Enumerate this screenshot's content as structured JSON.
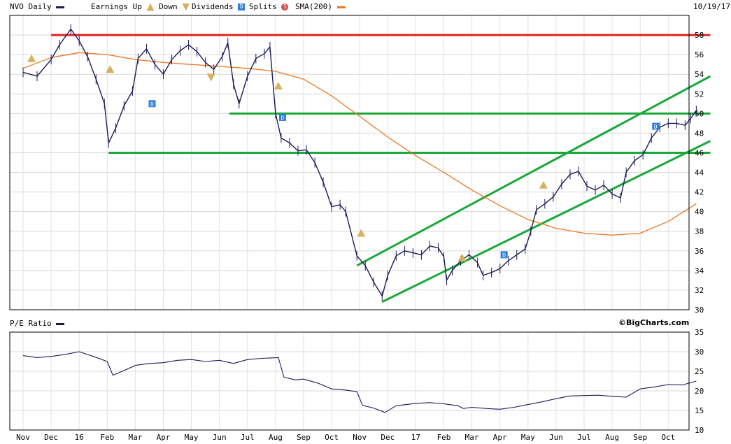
{
  "header": {
    "symbol_label": "NVO Daily",
    "earnings_up_label": "Earnings Up",
    "down_label": "Down",
    "dividends_label": "Dividends",
    "splits_label": "Splits",
    "sma_label": "SMA(200)",
    "date_label": "10/19/17",
    "pe_label": "P/E Ratio",
    "brand": "©BigCharts.com"
  },
  "colors": {
    "price": "#1b1b5a",
    "sma": "#ee7722",
    "resistance": "#e32020",
    "trend": "#1aa83a",
    "earnings_marker": "#d8b060",
    "dividend_marker": "#2f7fe0",
    "split_marker": "#d04848"
  },
  "chart_data": [
    {
      "type": "line",
      "name": "NVO Daily",
      "x": [
        "Nov",
        "Dec",
        "16",
        "Feb",
        "Mar",
        "Apr",
        "May",
        "Jun",
        "Jul",
        "Aug",
        "Sep",
        "Oct",
        "Nov",
        "Dec",
        "17",
        "Feb",
        "Mar",
        "Apr",
        "May",
        "Jun",
        "Jul",
        "Aug",
        "Sep",
        "Oct"
      ],
      "ylim": [
        30,
        60
      ],
      "yticks": [
        30,
        32,
        34,
        36,
        38,
        40,
        42,
        44,
        46,
        48,
        50,
        52,
        54,
        56,
        58
      ],
      "series": [
        {
          "name": "NVO Daily",
          "points": [
            [
              0,
              54.2
            ],
            [
              0.5,
              53.8
            ],
            [
              1,
              55.5
            ],
            [
              1.3,
              57.0
            ],
            [
              1.7,
              58.6
            ],
            [
              2,
              57.4
            ],
            [
              2.3,
              55.8
            ],
            [
              2.6,
              53.5
            ],
            [
              2.9,
              51.0
            ],
            [
              3.05,
              47.0
            ],
            [
              3.3,
              48.5
            ],
            [
              3.6,
              50.8
            ],
            [
              3.9,
              52.3
            ],
            [
              4.1,
              55.6
            ],
            [
              4.4,
              56.6
            ],
            [
              4.7,
              55.0
            ],
            [
              5,
              54.0
            ],
            [
              5.3,
              55.5
            ],
            [
              5.6,
              56.4
            ],
            [
              5.9,
              57.0
            ],
            [
              6.2,
              56.3
            ],
            [
              6.5,
              55.2
            ],
            [
              6.8,
              54.5
            ],
            [
              7.1,
              55.8
            ],
            [
              7.3,
              57.2
            ],
            [
              7.5,
              53.0
            ],
            [
              7.7,
              51.0
            ],
            [
              8,
              53.8
            ],
            [
              8.3,
              55.6
            ],
            [
              8.6,
              56.1
            ],
            [
              8.8,
              56.8
            ],
            [
              9.0,
              50.0
            ],
            [
              9.2,
              47.5
            ],
            [
              9.5,
              47.0
            ],
            [
              9.8,
              46.2
            ],
            [
              10.1,
              46.3
            ],
            [
              10.4,
              45.0
            ],
            [
              10.7,
              43.0
            ],
            [
              11,
              40.5
            ],
            [
              11.3,
              40.7
            ],
            [
              11.5,
              40.0
            ],
            [
              11.9,
              35.5
            ],
            [
              12.2,
              34.5
            ],
            [
              12.5,
              32.8
            ],
            [
              12.8,
              31.4
            ],
            [
              13,
              33.5
            ],
            [
              13.3,
              35.5
            ],
            [
              13.6,
              36.0
            ],
            [
              13.9,
              35.8
            ],
            [
              14.2,
              35.6
            ],
            [
              14.5,
              36.5
            ],
            [
              14.8,
              36.3
            ],
            [
              15,
              35.4
            ],
            [
              15.1,
              33.0
            ],
            [
              15.3,
              34.0
            ],
            [
              15.6,
              35.0
            ],
            [
              15.9,
              35.6
            ],
            [
              16.2,
              34.8
            ],
            [
              16.4,
              33.5
            ],
            [
              16.7,
              33.8
            ],
            [
              17,
              34.2
            ],
            [
              17.3,
              35.0
            ],
            [
              17.6,
              35.6
            ],
            [
              17.9,
              36.2
            ],
            [
              18.1,
              38.0
            ],
            [
              18.3,
              40.2
            ],
            [
              18.6,
              40.8
            ],
            [
              18.9,
              41.5
            ],
            [
              19.2,
              42.8
            ],
            [
              19.5,
              43.8
            ],
            [
              19.8,
              44.1
            ],
            [
              20.1,
              42.6
            ],
            [
              20.4,
              42.2
            ],
            [
              20.7,
              42.7
            ],
            [
              21,
              41.8
            ],
            [
              21.3,
              41.4
            ],
            [
              21.5,
              44.0
            ],
            [
              21.8,
              45.2
            ],
            [
              22.1,
              45.8
            ],
            [
              22.4,
              47.5
            ],
            [
              22.7,
              48.6
            ],
            [
              23,
              49.0
            ],
            [
              23.3,
              49.0
            ],
            [
              23.6,
              48.8
            ],
            [
              23.8,
              49.5
            ],
            [
              24,
              50.3
            ]
          ]
        },
        {
          "name": "SMA(200)",
          "points": [
            [
              0,
              54.6
            ],
            [
              1,
              55.7
            ],
            [
              2,
              56.2
            ],
            [
              3,
              56.0
            ],
            [
              4,
              55.5
            ],
            [
              5,
              55.2
            ],
            [
              6,
              55.0
            ],
            [
              7,
              54.8
            ],
            [
              8,
              54.6
            ],
            [
              9,
              54.3
            ],
            [
              10,
              53.5
            ],
            [
              11,
              51.8
            ],
            [
              12,
              49.7
            ],
            [
              13,
              47.6
            ],
            [
              14,
              45.7
            ],
            [
              15,
              44.0
            ],
            [
              16,
              42.2
            ],
            [
              17,
              40.6
            ],
            [
              18,
              39.2
            ],
            [
              19,
              38.3
            ],
            [
              20,
              37.8
            ],
            [
              21,
              37.6
            ],
            [
              22,
              37.8
            ],
            [
              23,
              39.0
            ],
            [
              24,
              40.8
            ]
          ]
        }
      ],
      "lines": [
        {
          "name": "resistance",
          "y": 58.0,
          "x_start": 1.0,
          "x_end": 24.5
        },
        {
          "name": "support-50",
          "y": 50.0,
          "x_start": 7.35,
          "x_end": 24.5
        },
        {
          "name": "support-46",
          "y": 46.0,
          "x_start": 3.05,
          "x_end": 24.5
        }
      ],
      "channel": [
        {
          "name": "upper",
          "from": [
            11.9,
            34.5
          ],
          "to": [
            24.5,
            53.8
          ]
        },
        {
          "name": "lower",
          "from": [
            12.8,
            30.8
          ],
          "to": [
            24.5,
            47.2
          ]
        }
      ],
      "markers": [
        {
          "type": "earnings_up",
          "x": 0.3,
          "y": 55.6
        },
        {
          "type": "earnings_up",
          "x": 3.1,
          "y": 54.5
        },
        {
          "type": "dividend",
          "x": 4.6,
          "y": 51.0
        },
        {
          "type": "earnings_down",
          "x": 6.7,
          "y": 53.7
        },
        {
          "type": "earnings_up",
          "x": 9.1,
          "y": 52.8
        },
        {
          "type": "dividend",
          "x": 9.25,
          "y": 49.6
        },
        {
          "type": "earnings_up",
          "x": 12.05,
          "y": 37.8
        },
        {
          "type": "earnings_up",
          "x": 15.65,
          "y": 35.3
        },
        {
          "type": "dividend",
          "x": 17.15,
          "y": 35.6
        },
        {
          "type": "earnings_up",
          "x": 18.55,
          "y": 42.7
        },
        {
          "type": "dividend",
          "x": 22.55,
          "y": 48.7
        }
      ]
    },
    {
      "type": "line",
      "name": "P/E Ratio",
      "x": [
        "Nov",
        "Dec",
        "16",
        "Feb",
        "Mar",
        "Apr",
        "May",
        "Jun",
        "Jul",
        "Aug",
        "Sep",
        "Oct",
        "Nov",
        "Dec",
        "17",
        "Feb",
        "Mar",
        "Apr",
        "May",
        "Jun",
        "Jul",
        "Aug",
        "Sep",
        "Oct"
      ],
      "ylim": [
        10,
        35
      ],
      "yticks": [
        10,
        15,
        20,
        25,
        30,
        35
      ],
      "series": [
        {
          "name": "P/E Ratio",
          "points": [
            [
              0,
              29.0
            ],
            [
              0.5,
              28.5
            ],
            [
              1,
              28.8
            ],
            [
              1.5,
              29.3
            ],
            [
              2,
              30.0
            ],
            [
              2.5,
              28.8
            ],
            [
              3,
              27.5
            ],
            [
              3.2,
              24.0
            ],
            [
              3.6,
              25.2
            ],
            [
              4,
              26.5
            ],
            [
              4.5,
              27.0
            ],
            [
              5,
              27.2
            ],
            [
              5.5,
              27.8
            ],
            [
              6,
              28.0
            ],
            [
              6.5,
              27.5
            ],
            [
              7,
              27.8
            ],
            [
              7.5,
              27.0
            ],
            [
              8,
              28.0
            ],
            [
              8.5,
              28.3
            ],
            [
              9.1,
              28.5
            ],
            [
              9.3,
              23.5
            ],
            [
              9.7,
              22.8
            ],
            [
              10,
              23.0
            ],
            [
              10.5,
              22.0
            ],
            [
              11,
              20.5
            ],
            [
              11.5,
              20.2
            ],
            [
              11.9,
              19.8
            ],
            [
              12.1,
              16.3
            ],
            [
              12.5,
              15.6
            ],
            [
              12.9,
              14.5
            ],
            [
              13.3,
              16.2
            ],
            [
              14,
              16.8
            ],
            [
              14.5,
              17.0
            ],
            [
              15,
              16.7
            ],
            [
              15.5,
              16.2
            ],
            [
              15.7,
              15.5
            ],
            [
              16,
              15.8
            ],
            [
              16.5,
              15.5
            ],
            [
              17,
              15.3
            ],
            [
              17.5,
              15.8
            ],
            [
              18,
              16.5
            ],
            [
              18.5,
              17.2
            ],
            [
              19,
              18.0
            ],
            [
              19.5,
              18.7
            ],
            [
              20,
              18.8
            ],
            [
              20.5,
              18.9
            ],
            [
              21,
              18.6
            ],
            [
              21.5,
              18.4
            ],
            [
              22,
              20.5
            ],
            [
              22.5,
              21.0
            ],
            [
              23,
              21.6
            ],
            [
              23.5,
              21.5
            ],
            [
              24,
              22.5
            ]
          ]
        }
      ]
    }
  ]
}
